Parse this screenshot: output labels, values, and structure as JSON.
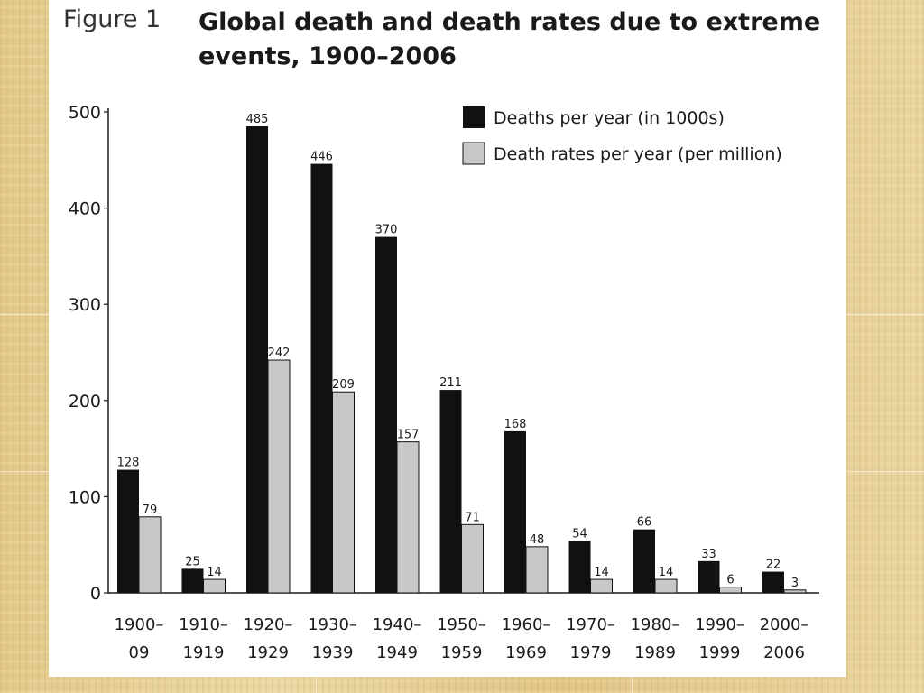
{
  "figure": {
    "label": "Figure 1",
    "title": "Global death and death rates due to extreme events, 1900–2006"
  },
  "colors": {
    "deaths": "#111111",
    "rates": "#c8c8c8",
    "bar_stroke": "#111111"
  },
  "chart_data": {
    "type": "bar",
    "title": "Global death and death rates due to extreme events, 1900–2006",
    "xlabel": "",
    "ylabel": "",
    "ylim": [
      0,
      500
    ],
    "yticks": [
      0,
      100,
      200,
      300,
      400,
      500
    ],
    "grid": false,
    "legend": "top-right",
    "categories": [
      [
        "1900–",
        "09"
      ],
      [
        "1910–",
        "1919"
      ],
      [
        "1920–",
        "1929"
      ],
      [
        "1930–",
        "1939"
      ],
      [
        "1940–",
        "1949"
      ],
      [
        "1950–",
        "1959"
      ],
      [
        "1960–",
        "1969"
      ],
      [
        "1970–",
        "1979"
      ],
      [
        "1980–",
        "1989"
      ],
      [
        "1990–",
        "1999"
      ],
      [
        "2000–",
        "2006"
      ]
    ],
    "series": [
      {
        "name": "Deaths per year (in 1000s)",
        "values": [
          128,
          25,
          485,
          446,
          370,
          211,
          168,
          54,
          66,
          33,
          22
        ]
      },
      {
        "name": "Death rates per year (per million)",
        "values": [
          79,
          14,
          242,
          209,
          157,
          71,
          48,
          14,
          14,
          6,
          3
        ]
      }
    ]
  }
}
